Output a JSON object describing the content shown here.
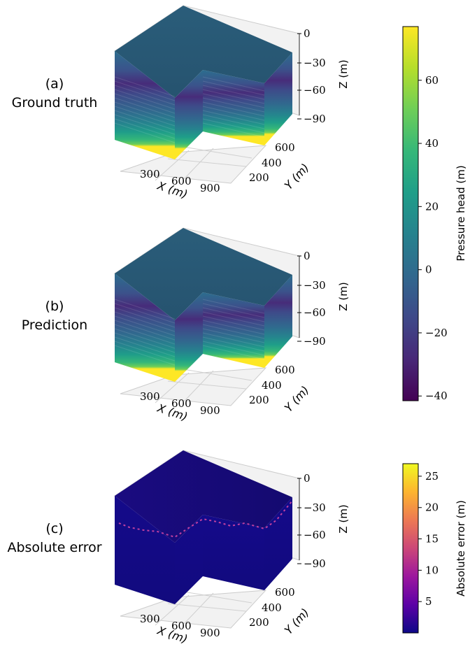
{
  "chart_data": [
    {
      "type": "heatmap",
      "panel_label": "(a)",
      "title": "Ground truth",
      "xlabel": "X (m)",
      "ylabel": "Y (m)",
      "zlabel": "Z (m)",
      "x_ticks": [
        "300",
        "600",
        "900"
      ],
      "y_ticks": [
        "200",
        "400",
        "600"
      ],
      "z_ticks": [
        "0",
        "−30",
        "−60",
        "−90"
      ],
      "colormap": "viridis",
      "clim": [
        -40,
        77
      ]
    },
    {
      "type": "heatmap",
      "panel_label": "(b)",
      "title": "Prediction",
      "xlabel": "X (m)",
      "ylabel": "Y (m)",
      "zlabel": "Z (m)",
      "x_ticks": [
        "300",
        "600",
        "900"
      ],
      "y_ticks": [
        "200",
        "400",
        "600"
      ],
      "z_ticks": [
        "0",
        "−30",
        "−60",
        "−90"
      ],
      "colormap": "viridis",
      "clim": [
        -40,
        77
      ]
    },
    {
      "type": "heatmap",
      "panel_label": "(c)",
      "title": "Absolute error",
      "xlabel": "X (m)",
      "ylabel": "Y (m)",
      "zlabel": "Z (m)",
      "x_ticks": [
        "300",
        "600",
        "900"
      ],
      "y_ticks": [
        "200",
        "400",
        "600"
      ],
      "z_ticks": [
        "0",
        "−30",
        "−60",
        "−90"
      ],
      "colormap": "plasma",
      "clim": [
        0,
        27
      ]
    }
  ],
  "colorbars": [
    {
      "label": "Pressure head (m)",
      "ticks": [
        {
          "value": 60,
          "text": "60"
        },
        {
          "value": 40,
          "text": "40"
        },
        {
          "value": 20,
          "text": "20"
        },
        {
          "value": 0,
          "text": "0"
        },
        {
          "value": -20,
          "text": "−20"
        },
        {
          "value": -40,
          "text": "−40"
        }
      ],
      "colors": [
        "#fde725",
        "#b5de2b",
        "#6ece58",
        "#35b779",
        "#1f9e89",
        "#26828e",
        "#31688e",
        "#3e4989",
        "#482878",
        "#440154"
      ]
    },
    {
      "label": "Absolute error (m)",
      "ticks": [
        {
          "value": 25,
          "text": "25"
        },
        {
          "value": 20,
          "text": "20"
        },
        {
          "value": 15,
          "text": "15"
        },
        {
          "value": 10,
          "text": "10"
        },
        {
          "value": 5,
          "text": "5"
        }
      ],
      "colors": [
        "#f0f921",
        "#fdb42f",
        "#ed7953",
        "#cc4778",
        "#9c179e",
        "#5c01a6",
        "#0d0887"
      ]
    }
  ]
}
